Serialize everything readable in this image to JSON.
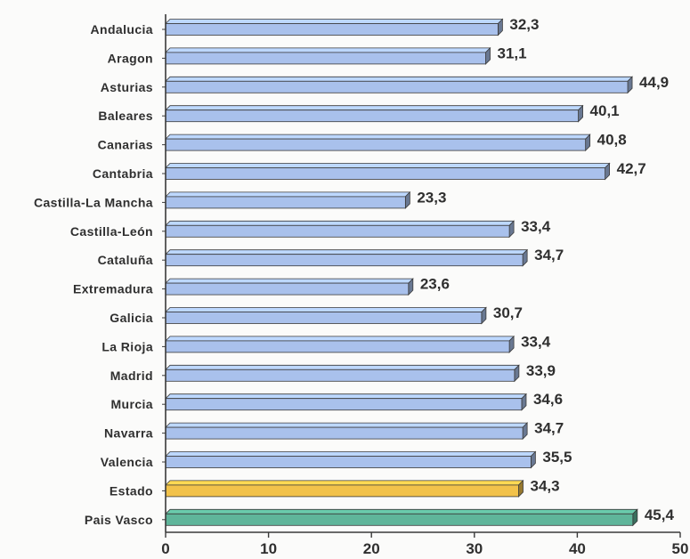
{
  "chart_data": {
    "type": "bar",
    "orientation": "horizontal",
    "categories": [
      "Andalucia",
      "Aragon",
      "Asturias",
      "Baleares",
      "Canarias",
      "Cantabria",
      "Castilla-La Mancha",
      "Castilla-León",
      "Cataluña",
      "Extremadura",
      "Galicia",
      "La Rioja",
      "Madrid",
      "Murcia",
      "Navarra",
      "Valencia",
      "Estado",
      "Pais Vasco"
    ],
    "values": [
      32.3,
      31.1,
      44.9,
      40.1,
      40.8,
      42.7,
      23.3,
      33.4,
      34.7,
      23.6,
      30.7,
      33.4,
      33.9,
      34.6,
      34.7,
      35.5,
      34.3,
      45.4
    ],
    "value_labels": [
      "32,3",
      "31,1",
      "44,9",
      "40,1",
      "40,8",
      "42,7",
      "23,3",
      "33,4",
      "34,7",
      "23,6",
      "30,7",
      "33,4",
      "33,9",
      "34,6",
      "34,7",
      "35,5",
      "34,3",
      "45,4"
    ],
    "bar_colors": [
      "#a9c1ec",
      "#a9c1ec",
      "#a9c1ec",
      "#a9c1ec",
      "#a9c1ec",
      "#a9c1ec",
      "#a9c1ec",
      "#a9c1ec",
      "#a9c1ec",
      "#a9c1ec",
      "#a9c1ec",
      "#a9c1ec",
      "#a9c1ec",
      "#a9c1ec",
      "#a9c1ec",
      "#a9c1ec",
      "#f2c24a",
      "#5fb59a"
    ],
    "xlim": [
      0,
      50
    ],
    "x_ticks": [
      0,
      10,
      20,
      30,
      40,
      50
    ],
    "title": "",
    "xlabel": "",
    "ylabel": "",
    "grid": false,
    "legend": false
  }
}
